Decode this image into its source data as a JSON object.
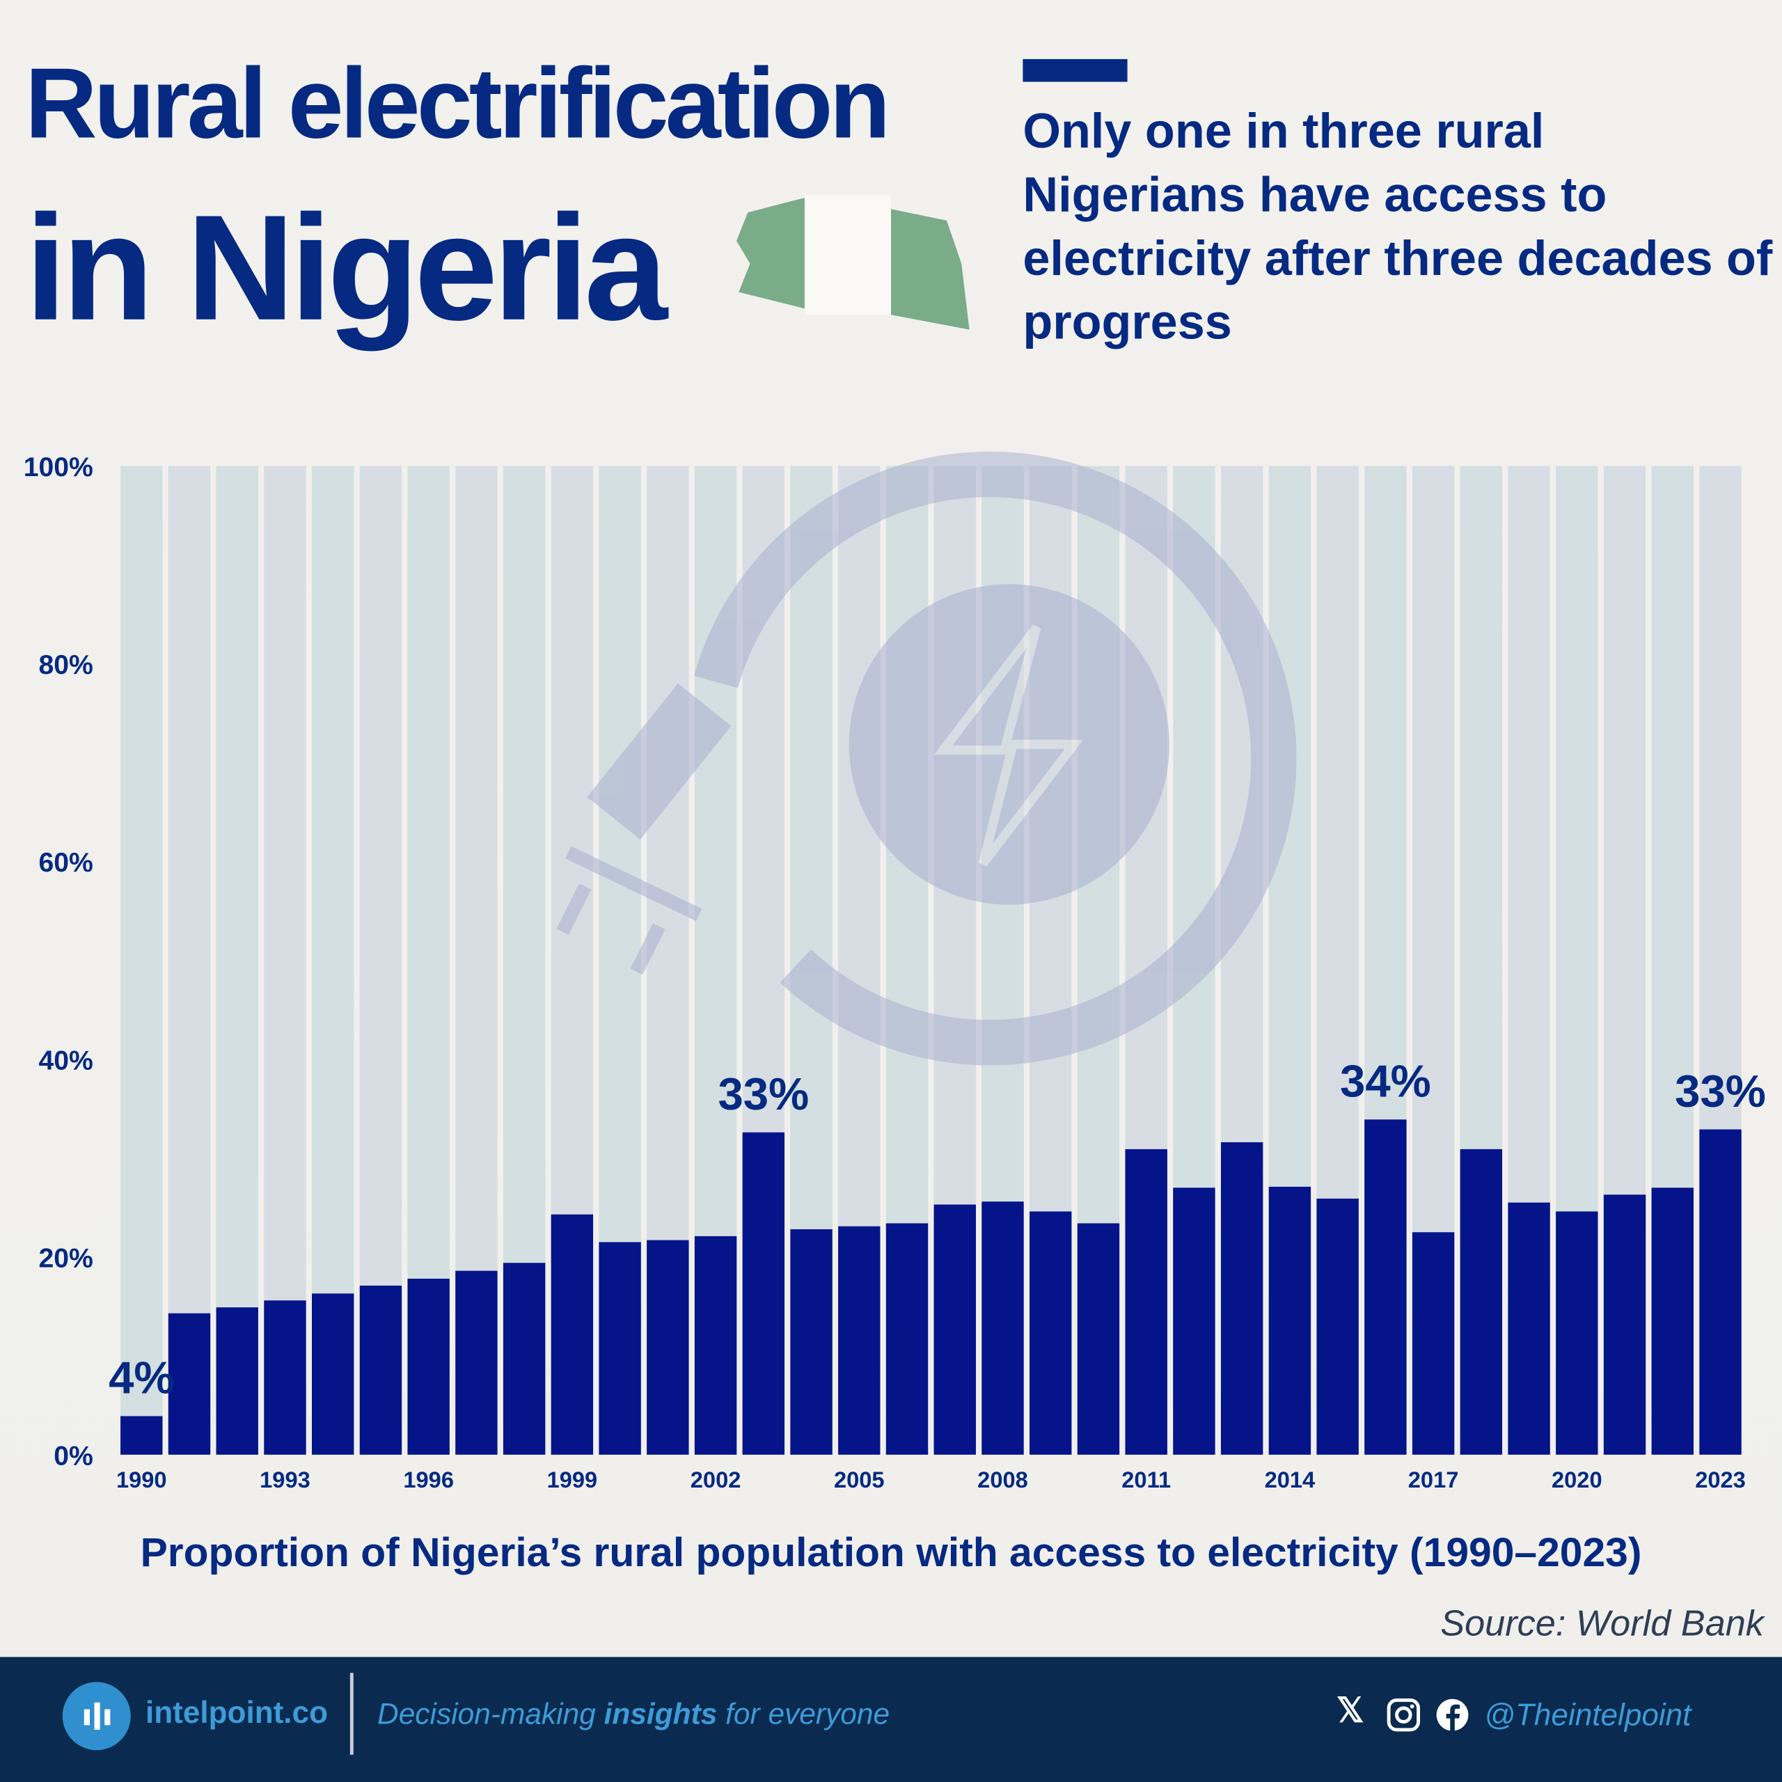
{
  "header": {
    "title_line1": "Rural electrification",
    "title_line2": "in Nigeria",
    "subtitle": "Only one in three rural Nigerians have access to electricity after three decades of progress"
  },
  "colors": {
    "bar": "#06148a",
    "track": "#d3dfe0",
    "title": "#062a82",
    "footer": "#0a2a4f",
    "flag_green": "#7aac8a"
  },
  "chart_data": {
    "type": "bar",
    "title": "Proportion of Nigeria’s rural population with access to electricity (1990–2023)",
    "xlabel": "",
    "ylabel": "",
    "ylim": [
      0,
      100
    ],
    "yticks": [
      "0%",
      "20%",
      "40%",
      "60%",
      "80%",
      "100%"
    ],
    "yticks_values": [
      0,
      20,
      40,
      60,
      80,
      100
    ],
    "categories": [
      "1990",
      "1991",
      "1992",
      "1993",
      "1994",
      "1995",
      "1996",
      "1997",
      "1998",
      "1999",
      "2000",
      "2001",
      "2002",
      "2003",
      "2004",
      "2005",
      "2006",
      "2007",
      "2008",
      "2009",
      "2010",
      "2011",
      "2012",
      "2013",
      "2014",
      "2015",
      "2016",
      "2017",
      "2018",
      "2019",
      "2020",
      "2021",
      "2022",
      "2023"
    ],
    "xtick_labels": [
      "1990",
      "1993",
      "1996",
      "1999",
      "2002",
      "2005",
      "2008",
      "2011",
      "2014",
      "2017",
      "2020",
      "2023"
    ],
    "values": [
      3.9,
      14.3,
      14.9,
      15.6,
      16.3,
      17.1,
      17.8,
      18.6,
      19.4,
      24.3,
      21.5,
      21.7,
      22.1,
      32.6,
      22.8,
      23.1,
      23.4,
      25.3,
      25.6,
      24.6,
      23.4,
      30.9,
      27.0,
      31.6,
      27.1,
      25.9,
      33.9,
      22.5,
      30.9,
      25.5,
      24.6,
      26.3,
      27.0,
      32.9
    ],
    "annotations": [
      {
        "year": "1990",
        "text": "4%"
      },
      {
        "year": "2003",
        "text": "33%"
      },
      {
        "year": "2016",
        "text": "34%"
      },
      {
        "year": "2023",
        "text": "33%"
      }
    ]
  },
  "source": "Source: World Bank",
  "footer": {
    "brand": "intelpoint.co",
    "tagline_pre": "Decision-making ",
    "tagline_bold": "insights",
    "tagline_post": " for everyone",
    "handle": "@Theintelpoint",
    "social_icons": [
      "x-icon",
      "instagram-icon",
      "facebook-icon"
    ]
  }
}
